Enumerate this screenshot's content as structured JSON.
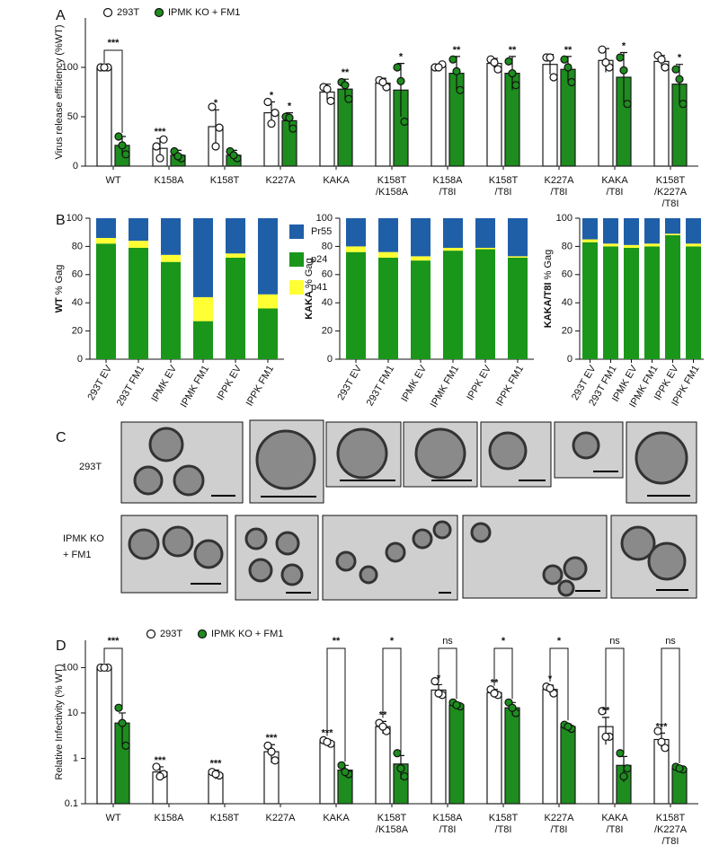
{
  "chart_data": [
    {
      "panel": "A",
      "type": "bar",
      "ylabel": "Virus release efficiency (%WT)",
      "ylim": [
        0,
        150
      ],
      "yticks": [
        0,
        50,
        100
      ],
      "legend": "top-left",
      "categories": [
        [
          "WT"
        ],
        [
          "K158A"
        ],
        [
          "K158T"
        ],
        [
          "K227A"
        ],
        [
          "KAKA"
        ],
        [
          "K158T",
          "/K158A"
        ],
        [
          "K158A",
          "/T8I"
        ],
        [
          "K158T",
          "/T8I"
        ],
        [
          "K227A",
          "/T8I"
        ],
        [
          "KAKA",
          "/T8I"
        ],
        [
          "K158T",
          "/K227A",
          "/T8I"
        ]
      ],
      "series": [
        {
          "name": "293T",
          "color": "#ffffff",
          "sig_color": "#1f3a93",
          "values": [
            100,
            18,
            40,
            54,
            75,
            84,
            101,
            104,
            103,
            107,
            106
          ],
          "errors": [
            1,
            10,
            17,
            11,
            8,
            5,
            2,
            5,
            10,
            12,
            6
          ],
          "points": [
            [
              100,
              100,
              100
            ],
            [
              20,
              27,
              8
            ],
            [
              60,
              39,
              20
            ],
            [
              65,
              54,
              43
            ],
            [
              80,
              66,
              78
            ],
            [
              87,
              80,
              85
            ],
            [
              100,
              103,
              100
            ],
            [
              108,
              98,
              105
            ],
            [
              110,
              90,
              110
            ],
            [
              118,
              100,
              105
            ],
            [
              112,
              100,
              108
            ]
          ],
          "sig": [
            null,
            "***",
            "*",
            "*",
            null,
            null,
            null,
            null,
            null,
            null,
            null
          ]
        },
        {
          "name": "IPMK KO + FM1",
          "color": "#1e8c1e",
          "sig_color": "#2a8a2a",
          "values": [
            21,
            11,
            11,
            46,
            78,
            77,
            94,
            94,
            98,
            90,
            83
          ],
          "errors": [
            9,
            5,
            5,
            8,
            10,
            27,
            17,
            17,
            13,
            25,
            20
          ],
          "points": [
            [
              30,
              12,
              21
            ],
            [
              15,
              8,
              10
            ],
            [
              15,
              8,
              11
            ],
            [
              50,
              38,
              49
            ],
            [
              85,
              68,
              82
            ],
            [
              100,
              45,
              86
            ],
            [
              108,
              77,
              96
            ],
            [
              106,
              82,
              94
            ],
            [
              108,
              85,
              100
            ],
            [
              110,
              63,
              97
            ],
            [
              98,
              63,
              88
            ]
          ],
          "sig": [
            null,
            null,
            null,
            "*",
            "**",
            "*",
            "**",
            "**",
            "**",
            "*",
            "*"
          ]
        }
      ],
      "bracket_labels": [
        "***",
        null,
        null,
        null,
        null,
        null,
        null,
        null,
        null,
        null,
        null
      ]
    },
    {
      "panel": "B",
      "type": "stacked_bar",
      "ylabel_bold": "WT",
      "ylabel": " % Gag",
      "ylim": [
        0,
        100
      ],
      "yticks": [
        0,
        20,
        40,
        60,
        80,
        100
      ],
      "legend": "right",
      "categories": [
        "293T EV",
        "293T FM1",
        "IPMK EV",
        "IPMK FM1",
        "IPPK EV",
        "IPPK FM1"
      ],
      "series": [
        {
          "name": "Pr55",
          "color": "#1f5fa8",
          "values": [
            14,
            16,
            26,
            56,
            25,
            54
          ]
        },
        {
          "name": "p24",
          "color": "#1a961a",
          "values": [
            82,
            79,
            69,
            27,
            72,
            36
          ]
        },
        {
          "name": "p41",
          "color": "#ffff33",
          "values": [
            4,
            5,
            5,
            17,
            3,
            10
          ]
        }
      ]
    },
    {
      "type": "stacked_bar",
      "ylabel_bold": "KAKA",
      "ylabel": " % Gag",
      "ylim": [
        0,
        100
      ],
      "yticks": [
        0,
        20,
        40,
        60,
        80,
        100
      ],
      "categories": [
        "293T EV",
        "293T FM1",
        "IPMK EV",
        "IPMK FM1",
        "IPPK EV",
        "IPPK FM1"
      ],
      "series": [
        {
          "color": "#1f5fa8",
          "values": [
            20,
            24,
            27,
            21,
            21,
            27
          ]
        },
        {
          "color": "#1a961a",
          "values": [
            76,
            72,
            70,
            77,
            78,
            72
          ]
        },
        {
          "color": "#ffff33",
          "values": [
            4,
            4,
            3,
            2,
            1,
            1
          ]
        }
      ]
    },
    {
      "type": "stacked_bar",
      "ylabel_bold": "KAKA/T8I",
      "ylabel": " % Gag",
      "ylim": [
        0,
        100
      ],
      "yticks": [
        0,
        20,
        40,
        60,
        80,
        100
      ],
      "categories": [
        "293T EV",
        "293T FM1",
        "IPMK EV",
        "IPMK FM1",
        "IPPK EV",
        "IPPK FM1"
      ],
      "series": [
        {
          "color": "#1f5fa8",
          "values": [
            15,
            18,
            19,
            18,
            11,
            18
          ]
        },
        {
          "color": "#1a961a",
          "values": [
            83,
            80,
            79,
            80,
            88,
            80
          ]
        },
        {
          "color": "#ffff33",
          "values": [
            2,
            2,
            2,
            2,
            1,
            2
          ]
        }
      ]
    },
    {
      "panel": "D",
      "type": "bar",
      "yscale": "log",
      "ylabel": "Relative Infectivity (% WT)",
      "ylim": [
        0.1,
        400
      ],
      "yticks": [
        0.1,
        1,
        10,
        100
      ],
      "legend": "top-left",
      "categories": [
        [
          "WT"
        ],
        [
          "K158A"
        ],
        [
          "K158T"
        ],
        [
          "K227A"
        ],
        [
          "KAKA"
        ],
        [
          "K158T",
          "/K158A"
        ],
        [
          "K158A",
          "/T8I"
        ],
        [
          "K158T",
          "/T8I"
        ],
        [
          "K227A",
          "/T8I"
        ],
        [
          "KAKA",
          "/T8I"
        ],
        [
          "K158T",
          "/K227A",
          "/T8I"
        ]
      ],
      "series": [
        {
          "name": "293T",
          "color": "#ffffff",
          "sig_color": "#1f3a93",
          "values": [
            100,
            0.5,
            0.45,
            1.4,
            2.3,
            5,
            32,
            28,
            33,
            5,
            2.6
          ],
          "errors": [
            5,
            0.15,
            0.1,
            0.6,
            0.3,
            1.5,
            10,
            5,
            8,
            3,
            1
          ],
          "points": [
            [
              100,
              100,
              100
            ],
            [
              0.65,
              0.45,
              0.4
            ],
            [
              0.5,
              0.42,
              0.45
            ],
            [
              1.9,
              0.9,
              1.4
            ],
            [
              2.5,
              2.1,
              2.3
            ],
            [
              6,
              4,
              5
            ],
            [
              50,
              25,
              27
            ],
            [
              33,
              25,
              27
            ],
            [
              38,
              27,
              35
            ],
            [
              11,
              3,
              3
            ],
            [
              4,
              1.7,
              2.3
            ]
          ],
          "sig": [
            null,
            "***",
            "***",
            "***",
            "***",
            "**",
            "*",
            "**",
            "*",
            "**",
            "***"
          ]
        },
        {
          "name": "IPMK KO + FM1",
          "color": "#1e8c1e",
          "values": [
            6,
            null,
            null,
            null,
            0.55,
            0.75,
            15,
            13,
            5,
            0.7,
            0.6
          ],
          "errors": [
            4,
            null,
            null,
            null,
            0.15,
            0.4,
            2,
            4,
            0.7,
            0.4,
            0.05
          ],
          "points": [
            [
              13,
              1.9,
              6
            ],
            null,
            null,
            null,
            [
              0.7,
              0.45,
              0.5
            ],
            [
              1.3,
              0.4,
              0.6
            ],
            [
              17,
              14,
              15
            ],
            [
              17,
              10,
              13
            ],
            [
              5.5,
              4.5,
              5
            ],
            [
              1.3,
              0.6,
              0.4
            ],
            [
              0.65,
              0.57,
              0.6
            ]
          ]
        }
      ],
      "bracket_labels": [
        "***",
        null,
        null,
        null,
        "**",
        "*",
        "ns",
        "*",
        "*",
        "ns",
        "ns"
      ]
    }
  ],
  "panel_c": {
    "panel": "C",
    "rows": [
      [
        "293T"
      ],
      [
        "IPMK KO",
        "+ FM1"
      ]
    ]
  }
}
